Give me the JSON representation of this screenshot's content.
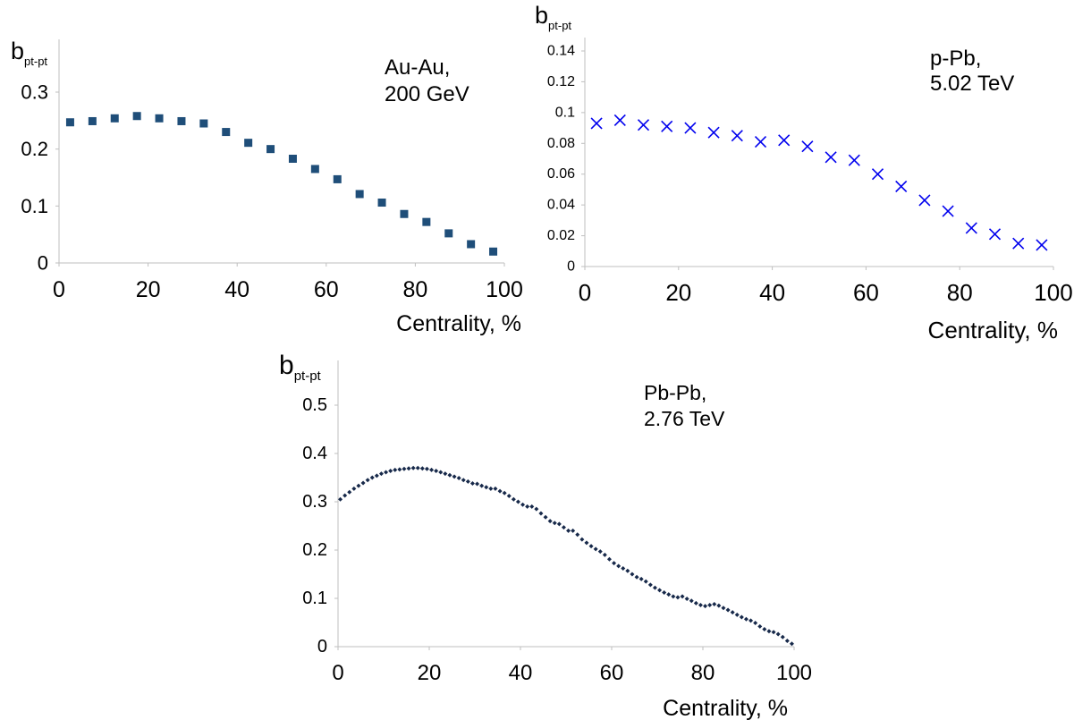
{
  "chart_data": [
    {
      "id": "auau",
      "type": "scatter",
      "ylabel": "b",
      "ylabel_sub": "pt-pt",
      "xlabel": "Centrality, %",
      "annotation": [
        "Au-Au,",
        "200 GeV"
      ],
      "xlim": [
        0,
        100
      ],
      "ylim": [
        0,
        0.3
      ],
      "xticks": [
        0,
        20,
        40,
        60,
        80,
        100
      ],
      "yticks": [
        0,
        0.1,
        0.2,
        0.3
      ],
      "ytick_labels": [
        "0",
        "0.1",
        "0.2",
        "0.3"
      ],
      "marker": "square",
      "color": "#1f4e79",
      "x": [
        2.5,
        7.5,
        12.5,
        17.5,
        22.5,
        27.5,
        32.5,
        37.5,
        42.5,
        47.5,
        52.5,
        57.5,
        62.5,
        67.5,
        72.5,
        77.5,
        82.5,
        87.5,
        92.5,
        97.5
      ],
      "y": [
        0.247,
        0.249,
        0.254,
        0.258,
        0.254,
        0.249,
        0.245,
        0.23,
        0.211,
        0.2,
        0.183,
        0.165,
        0.147,
        0.121,
        0.106,
        0.086,
        0.072,
        0.052,
        0.033,
        0.02
      ]
    },
    {
      "id": "ppb",
      "type": "scatter",
      "ylabel": "b",
      "ylabel_sub": "pt-pt",
      "xlabel": "Centrality, %",
      "annotation": [
        "p-Pb,",
        "5.02 TeV"
      ],
      "xlim": [
        0,
        100
      ],
      "ylim": [
        0,
        0.14
      ],
      "xticks": [
        0,
        20,
        40,
        60,
        80,
        100
      ],
      "yticks": [
        0,
        0.02,
        0.04,
        0.06,
        0.08,
        0.1,
        0.12,
        0.14
      ],
      "ytick_labels": [
        "0",
        "0.02",
        "0.04",
        "0.06",
        "0.08",
        "0.1",
        "0.12",
        "0.14"
      ],
      "marker": "x",
      "color": "#0000ee",
      "x": [
        2.5,
        7.5,
        12.5,
        17.5,
        22.5,
        27.5,
        32.5,
        37.5,
        42.5,
        47.5,
        52.5,
        57.5,
        62.5,
        67.5,
        72.5,
        77.5,
        82.5,
        87.5,
        92.5,
        97.5
      ],
      "y": [
        0.093,
        0.095,
        0.092,
        0.091,
        0.09,
        0.087,
        0.085,
        0.081,
        0.082,
        0.078,
        0.071,
        0.069,
        0.06,
        0.052,
        0.043,
        0.036,
        0.025,
        0.021,
        0.015,
        0.014
      ]
    },
    {
      "id": "pbpb",
      "type": "scatter",
      "ylabel": "b",
      "ylabel_sub": "pt-pt",
      "xlabel": "Centrality, %",
      "annotation": [
        "Pb-Pb,",
        "2.76 TeV"
      ],
      "xlim": [
        0,
        100
      ],
      "ylim": [
        0,
        0.5
      ],
      "xticks": [
        0,
        20,
        40,
        60,
        80,
        100
      ],
      "yticks": [
        0,
        0.1,
        0.2,
        0.3,
        0.4,
        0.5
      ],
      "ytick_labels": [
        "0",
        "0.1",
        "0.2",
        "0.3",
        "0.4",
        "0.5"
      ],
      "marker": "diamond",
      "color": "#17294a",
      "x": [
        0.5,
        1.5,
        2.5,
        3.5,
        4.5,
        5.5,
        6.5,
        7.5,
        8.5,
        9.5,
        10.5,
        11.5,
        12.5,
        13.5,
        14.5,
        15.5,
        16.5,
        17.5,
        18.5,
        19.5,
        20.5,
        21.5,
        22.5,
        23.5,
        24.5,
        25.5,
        26.5,
        27.5,
        28.5,
        29.5,
        30.5,
        31.5,
        32.5,
        33.5,
        34.5,
        35.5,
        36.5,
        37.5,
        38.5,
        39.5,
        40.5,
        41.5,
        42.5,
        43.5,
        44.5,
        45.5,
        46.5,
        47.5,
        48.5,
        49.5,
        50.5,
        51.5,
        52.5,
        53.5,
        54.5,
        55.5,
        56.5,
        57.5,
        58.5,
        59.5,
        60.5,
        61.5,
        62.5,
        63.5,
        64.5,
        65.5,
        66.5,
        67.5,
        68.5,
        69.5,
        70.5,
        71.5,
        72.5,
        73.5,
        74.5,
        75.5,
        76.5,
        77.5,
        78.5,
        79.5,
        80.5,
        81.5,
        82.5,
        83.5,
        84.5,
        85.5,
        86.5,
        87.5,
        88.5,
        89.5,
        90.5,
        91.5,
        92.5,
        93.5,
        94.5,
        95.5,
        96.5,
        97.5,
        98.5,
        99.5
      ],
      "y": [
        0.305,
        0.313,
        0.32,
        0.327,
        0.333,
        0.339,
        0.345,
        0.35,
        0.354,
        0.358,
        0.361,
        0.364,
        0.366,
        0.367,
        0.368,
        0.369,
        0.37,
        0.37,
        0.369,
        0.368,
        0.366,
        0.364,
        0.361,
        0.358,
        0.355,
        0.352,
        0.349,
        0.345,
        0.342,
        0.338,
        0.337,
        0.333,
        0.33,
        0.327,
        0.327,
        0.322,
        0.318,
        0.312,
        0.305,
        0.3,
        0.294,
        0.29,
        0.29,
        0.285,
        0.276,
        0.268,
        0.26,
        0.256,
        0.254,
        0.247,
        0.24,
        0.24,
        0.232,
        0.222,
        0.215,
        0.208,
        0.202,
        0.197,
        0.19,
        0.181,
        0.173,
        0.167,
        0.162,
        0.157,
        0.15,
        0.144,
        0.14,
        0.135,
        0.128,
        0.122,
        0.117,
        0.112,
        0.108,
        0.104,
        0.102,
        0.104,
        0.099,
        0.095,
        0.09,
        0.086,
        0.084,
        0.086,
        0.088,
        0.085,
        0.08,
        0.076,
        0.071,
        0.066,
        0.061,
        0.057,
        0.054,
        0.049,
        0.042,
        0.036,
        0.032,
        0.03,
        0.026,
        0.02,
        0.012,
        0.006
      ]
    }
  ]
}
